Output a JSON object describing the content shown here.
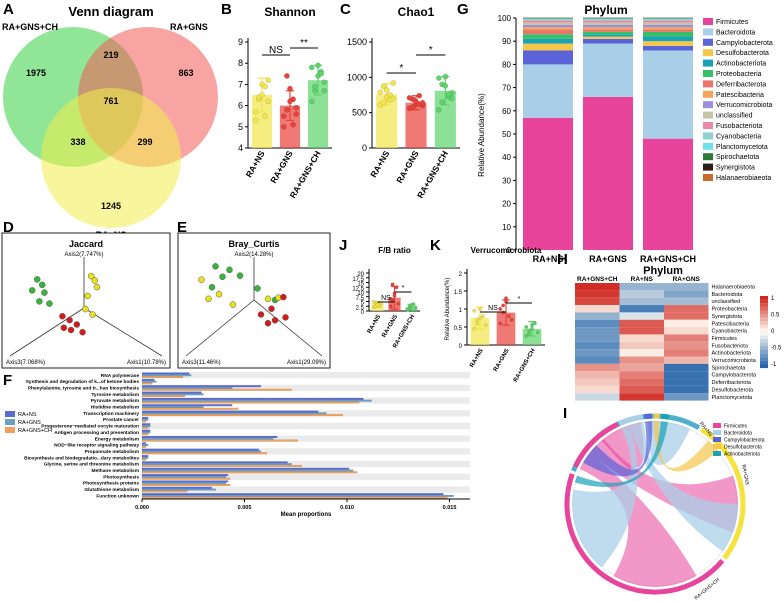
{
  "panel_letters": {
    "A": "A",
    "B": "B",
    "C": "C",
    "D": "D",
    "E": "E",
    "F": "F",
    "G": "G",
    "H": "H",
    "I": "I",
    "J": "J",
    "K": "K"
  },
  "colors": {
    "ns": "#f2e64a",
    "gns": "#e8423a",
    "ch": "#5dd46b",
    "red": "#d7191c",
    "green": "#2ca02c",
    "yellow": "#e6d300",
    "f_ns": "#5b6bd6",
    "f_gns": "#6aa0c7",
    "f_ch": "#f2a15c"
  },
  "chart_data": [
    {
      "id": "venn",
      "type": "venn",
      "title": "Venn diagram",
      "sets": [
        "RA+GNS+CH",
        "RA+GNS",
        "RA+NS"
      ],
      "colors": [
        "#35d13f",
        "#f25a55",
        "#f2ee4a"
      ],
      "regions": {
        "only_ch": "1975",
        "only_gns": "863",
        "only_ns": "1245",
        "ch_gns": "219",
        "ch_ns": "338",
        "gns_ns": "299",
        "all": "761"
      }
    },
    {
      "id": "shannon",
      "type": "bar",
      "title": "Shannon",
      "categories": [
        "RA+NS",
        "RA+GNS",
        "RA+GNS+CH"
      ],
      "values": [
        6.5,
        6.0,
        7.2
      ],
      "errors": [
        0.8,
        0.7,
        0.7
      ],
      "ylim": [
        4,
        9
      ],
      "yticks": [
        "4",
        "5",
        "6",
        "7",
        "8",
        "9"
      ],
      "points": [
        [
          5.3,
          6.3,
          7.0,
          6.9,
          6.2,
          5.7,
          6.4,
          6.5,
          5.5,
          7.2
        ],
        [
          5.0,
          5.8,
          6.8,
          6.3,
          5.9,
          5.5,
          7.4,
          6.2,
          5.1,
          5.6
        ],
        [
          7.8,
          6.7,
          7.4,
          7.6,
          7.1,
          6.2,
          6.9,
          7.9,
          7.5,
          6.7
        ]
      ],
      "brackets": [
        {
          "from": 0,
          "to": 1,
          "label": "NS"
        },
        {
          "from": 1,
          "to": 2,
          "label": "**"
        }
      ]
    },
    {
      "id": "chao1",
      "type": "bar",
      "title": "Chao1",
      "categories": [
        "RA+NS",
        "RA+GNS",
        "RA+GNS+CH"
      ],
      "values": [
        760,
        640,
        810
      ],
      "errors": [
        150,
        100,
        200
      ],
      "ylim": [
        0,
        1500
      ],
      "yticks": [
        "0",
        "500",
        "1000",
        "1500"
      ],
      "points": [
        [
          610,
          870,
          720,
          680,
          920,
          790,
          640,
          820,
          750,
          700
        ],
        [
          560,
          690,
          620,
          740,
          600,
          710,
          580,
          660,
          620,
          640
        ],
        [
          540,
          900,
          1010,
          720,
          780,
          990,
          650,
          880,
          760,
          700
        ]
      ],
      "brackets": [
        {
          "from": 0,
          "to": 1,
          "label": "*"
        },
        {
          "from": 1,
          "to": 2,
          "label": "*"
        }
      ]
    },
    {
      "id": "phylum_stack",
      "type": "bar",
      "title": "Phylum",
      "ylabel": "Relative Abundance(%)",
      "categories": [
        "RA+NS",
        "RA+GNS",
        "RA+GNS+CH"
      ],
      "ylim": [
        0,
        100
      ],
      "yticks": [
        "0",
        "10",
        "20",
        "30",
        "40",
        "50",
        "60",
        "70",
        "80",
        "90",
        "100"
      ],
      "series": [
        {
          "name": "Firmicutes",
          "color": "#e8449b",
          "values": [
            57,
            66,
            48
          ]
        },
        {
          "name": "Bacteroidota",
          "color": "#a9cfe8",
          "values": [
            23,
            23,
            38
          ]
        },
        {
          "name": "Campylobacterota",
          "color": "#5a63d8",
          "values": [
            6,
            2,
            2
          ]
        },
        {
          "name": "Desulfobacterota",
          "color": "#f4c64a",
          "values": [
            3,
            1,
            2
          ]
        },
        {
          "name": "Actinobacteriota",
          "color": "#1aa3b8",
          "values": [
            2,
            1,
            2
          ]
        },
        {
          "name": "Proteobacteria",
          "color": "#36c069",
          "values": [
            2,
            1,
            2
          ]
        },
        {
          "name": "Deferribacterota",
          "color": "#e9756a",
          "values": [
            2,
            1,
            1
          ]
        },
        {
          "name": "Patescibacteria",
          "color": "#f3a35a",
          "values": [
            1,
            1,
            1
          ]
        },
        {
          "name": "Verrucomicrobiota",
          "color": "#9a8fd8",
          "values": [
            1,
            1,
            1
          ]
        },
        {
          "name": "unclassified",
          "color": "#c3c7a8",
          "values": [
            1,
            1,
            1
          ]
        },
        {
          "name": "Fusobacteriota",
          "color": "#e98aa8",
          "values": [
            1,
            1,
            1
          ]
        },
        {
          "name": "Cyanobacteria",
          "color": "#8fd0cf",
          "values": [
            0.5,
            0.5,
            0.5
          ]
        },
        {
          "name": "Planctomycetota",
          "color": "#6ee0f0",
          "values": [
            0.3,
            0.3,
            0.3
          ]
        },
        {
          "name": "Spirochaetota",
          "color": "#2f7a3a",
          "values": [
            0.2,
            0.2,
            0.2
          ]
        },
        {
          "name": "Synergistota",
          "color": "#2d1b1b",
          "values": [
            0.1,
            0.1,
            0.1
          ]
        },
        {
          "name": "Halanaerobiaeota",
          "color": "#c86a2a",
          "values": [
            0.1,
            0.1,
            0.1
          ]
        }
      ]
    },
    {
      "id": "jaccard",
      "type": "scatter",
      "title": "Jaccard",
      "axes": [
        "Axis2(7.747%)",
        "Axis3(7.068%)",
        "Axis1(10.78%)"
      ],
      "groups": [
        {
          "name": "RA+GNS+CH",
          "color": "#38b43a",
          "points": [
            [
              -0.65,
              0.52
            ],
            [
              -0.58,
              0.42
            ],
            [
              -0.72,
              0.32
            ],
            [
              -0.55,
              0.28
            ],
            [
              -0.62,
              0.12
            ],
            [
              -0.48,
              0.08
            ]
          ]
        },
        {
          "name": "RA+NS",
          "color": "#ece21b",
          "points": [
            [
              0.1,
              0.58
            ],
            [
              0.15,
              0.5
            ],
            [
              0.18,
              0.38
            ],
            [
              0.05,
              0.22
            ],
            [
              0.02,
              -0.02
            ],
            [
              0.12,
              -0.12
            ]
          ]
        },
        {
          "name": "RA+GNS",
          "color": "#d41c1c",
          "points": [
            [
              -0.3,
              -0.15
            ],
            [
              -0.2,
              -0.22
            ],
            [
              -0.1,
              -0.3
            ],
            [
              -0.18,
              -0.4
            ],
            [
              -0.02,
              -0.44
            ],
            [
              -0.28,
              -0.36
            ]
          ]
        }
      ]
    },
    {
      "id": "bray",
      "type": "scatter",
      "title": "Bray_Curtis",
      "axes": [
        "Axis2(14.28%)",
        "Axis3(11.46%)",
        "Axis1(29.09%)"
      ],
      "groups": [
        {
          "name": "RA+GNS+CH",
          "color": "#38b43a",
          "points": [
            [
              -0.55,
              0.58
            ],
            [
              -0.35,
              0.52
            ],
            [
              -0.45,
              0.4
            ],
            [
              -0.2,
              0.42
            ],
            [
              -0.6,
              0.22
            ],
            [
              0.05,
              0.2
            ],
            [
              0.3,
              0.0
            ]
          ]
        },
        {
          "name": "RA+NS",
          "color": "#ece21b",
          "points": [
            [
              -0.75,
              0.35
            ],
            [
              -0.5,
              0.1
            ],
            [
              -0.65,
              0.02
            ],
            [
              -0.3,
              -0.08
            ],
            [
              0.2,
              0.02
            ],
            [
              0.35,
              0.04
            ]
          ]
        },
        {
          "name": "RA+GNS",
          "color": "#d41c1c",
          "points": [
            [
              0.42,
              0.05
            ],
            [
              0.25,
              -0.15
            ],
            [
              0.1,
              -0.25
            ],
            [
              0.3,
              -0.35
            ],
            [
              0.45,
              -0.3
            ],
            [
              0.2,
              -0.4
            ]
          ]
        }
      ]
    },
    {
      "id": "fb_ratio",
      "type": "bar",
      "title": "F/B ratio",
      "categories": [
        "RA+NS",
        "RA+GNS",
        "RA+GNS+CH"
      ],
      "values": [
        3.4,
        7.0,
        2.0
      ],
      "errors": [
        1.5,
        6.0,
        1.5
      ],
      "ylim": [
        0,
        20
      ],
      "yticks": [
        "0",
        "2.5",
        "5",
        "7.5",
        "10",
        "12.5",
        "15",
        "17.5",
        "20"
      ],
      "points": [
        [
          2.1,
          3.5,
          4.3,
          2.8,
          3.9,
          4.8,
          2.6,
          3.3
        ],
        [
          2.5,
          5.8,
          9.2,
          12.5,
          3.8,
          6.4,
          14.0,
          8.1
        ],
        [
          0.6,
          1.2,
          2.8,
          3.6,
          1.8,
          0.9,
          2.3,
          3.1
        ]
      ],
      "brackets": [
        {
          "from": 0,
          "to": 1,
          "label": "NS"
        },
        {
          "from": 1,
          "to": 2,
          "label": "*"
        }
      ]
    },
    {
      "id": "verruco",
      "type": "bar",
      "title": "Verrucomicrobiota",
      "ylabel": "Relative Abundance(%)",
      "categories": [
        "RA+NS",
        "RA+GNS",
        "RA+GNS+CH"
      ],
      "values": [
        0.75,
        0.9,
        0.45
      ],
      "errors": [
        0.3,
        0.35,
        0.2
      ],
      "ylim": [
        0,
        2
      ],
      "yticks": [
        "0",
        "0.5",
        "1",
        "1.5",
        "2"
      ],
      "points": [
        [
          0.45,
          0.7,
          1.0,
          0.8,
          0.55,
          0.95,
          0.6,
          0.75
        ],
        [
          0.6,
          1.1,
          1.3,
          0.8,
          0.7,
          1.0,
          0.9,
          1.2
        ],
        [
          0.25,
          0.4,
          0.55,
          0.6,
          0.35,
          0.5,
          0.3,
          0.45
        ]
      ],
      "brackets": [
        {
          "from": 0,
          "to": 1,
          "label": "NS"
        },
        {
          "from": 1,
          "to": 2,
          "label": "*"
        }
      ]
    },
    {
      "id": "heatmap",
      "type": "heatmap",
      "title": "Phylum",
      "columns": [
        "RA+GNS+CH",
        "RA+NS",
        "RA+GNS"
      ],
      "rows": [
        "Halanaerobiaeota",
        "Bacteroidota",
        "unclassified",
        "Proteobacteria",
        "Synergistota",
        "Patescibacteria",
        "Cyanobacteria",
        "Firmicutes",
        "Fusobacteriota",
        "Actinobacteriota",
        "Verrucomicrobiota",
        "Spirochaetota",
        "Campylobacterota",
        "Deferribacterota",
        "Desulfobacterota",
        "Planctomycetota"
      ],
      "values": [
        [
          1.15,
          -0.58,
          -0.58
        ],
        [
          1.1,
          -0.4,
          -0.7
        ],
        [
          1.0,
          -0.5,
          -0.5
        ],
        [
          0.2,
          -1.0,
          0.8
        ],
        [
          -0.6,
          -0.2,
          0.8
        ],
        [
          -0.9,
          0.9,
          0.1
        ],
        [
          -0.8,
          0.9,
          0.2
        ],
        [
          -0.8,
          0.2,
          0.7
        ],
        [
          -0.9,
          0.3,
          0.6
        ],
        [
          -0.8,
          0.1,
          0.7
        ],
        [
          -0.9,
          0.6,
          0.4
        ],
        [
          0.6,
          0.5,
          -1.1
        ],
        [
          0.4,
          0.7,
          -1.1
        ],
        [
          0.3,
          0.8,
          -1.1
        ],
        [
          0.2,
          0.9,
          -1.1
        ],
        [
          -0.3,
          1.1,
          -0.8
        ]
      ],
      "scale_ticks": [
        "1",
        "0.5",
        "0",
        "-0.5",
        "-1"
      ]
    },
    {
      "id": "kegg",
      "type": "bar",
      "orientation": "horizontal",
      "xlabel": "Mean proportions",
      "xlim": [
        0,
        0.016
      ],
      "xticks": [
        "0.000",
        "0.005",
        "0.010",
        "0.015"
      ],
      "legend": [
        "RA+NS",
        "RA+GNS",
        "RA+GNS+CH"
      ],
      "categories": [
        "RNA polymerase",
        "Synthesis and degradation of k...of ketone bodies",
        "Phenylalanine, tyrosine and tr...han biosynthesis",
        "Tyrosine metabolism",
        "Pyruvate metabolism",
        "Histidine metabolism",
        "Transcription machinery",
        "Prostate cancer",
        "Progesterone−mediated oocyte maturation",
        "Antigen processing and presentation",
        "Energy metabolism",
        "NOD−like receptor signaling pathway",
        "Propanoate metabolism",
        "Biosynthesis and biodegradatio...dary metabolites",
        "Glycine, serine and threonine metabolism",
        "Methane metabolism",
        "Photosynthesis",
        "Photosynthesis proteins",
        "Glutathione metabolism",
        "Function unknown"
      ],
      "series": [
        {
          "name": "RA+NS",
          "values": [
            0.0023,
            0.0006,
            0.0058,
            0.0029,
            0.0108,
            0.0044,
            0.0086,
            0.0003,
            0.0004,
            0.0004,
            0.0066,
            0.0002,
            0.0057,
            0.0003,
            0.0071,
            0.0101,
            0.0042,
            0.0042,
            0.0034,
            0.0147
          ]
        },
        {
          "name": "RA+GNS",
          "values": [
            0.0024,
            0.0007,
            0.0044,
            0.003,
            0.0112,
            0.003,
            0.009,
            0.0003,
            0.0004,
            0.0004,
            0.0064,
            0.0003,
            0.0058,
            0.0003,
            0.0073,
            0.0103,
            0.0041,
            0.0041,
            0.0036,
            0.0152
          ]
        },
        {
          "name": "RA+GNS+CH",
          "values": [
            0.002,
            0.0005,
            0.0073,
            0.0021,
            0.0106,
            0.0047,
            0.0098,
            0.0002,
            0.0003,
            0.0003,
            0.0076,
            0.0002,
            0.0061,
            0.0002,
            0.0078,
            0.0105,
            0.0043,
            0.0043,
            0.0022,
            0.0149
          ]
        }
      ]
    },
    {
      "id": "chord",
      "type": "chord",
      "legend": [
        "Firmicutes",
        "Bacteroidota",
        "Campylobacterota",
        "Desulfobacterota",
        "Actinobacteriota"
      ],
      "legend_colors": [
        "#e8449b",
        "#a9cfe8",
        "#5a63d8",
        "#f4c64a",
        "#1aa3b8"
      ],
      "group_labels": [
        "RA+NS",
        "RA+GNS",
        "RA+GNS+CH"
      ],
      "group_colors": [
        "#4fb0cc",
        "#f5e23a",
        "#e8449b"
      ]
    }
  ]
}
